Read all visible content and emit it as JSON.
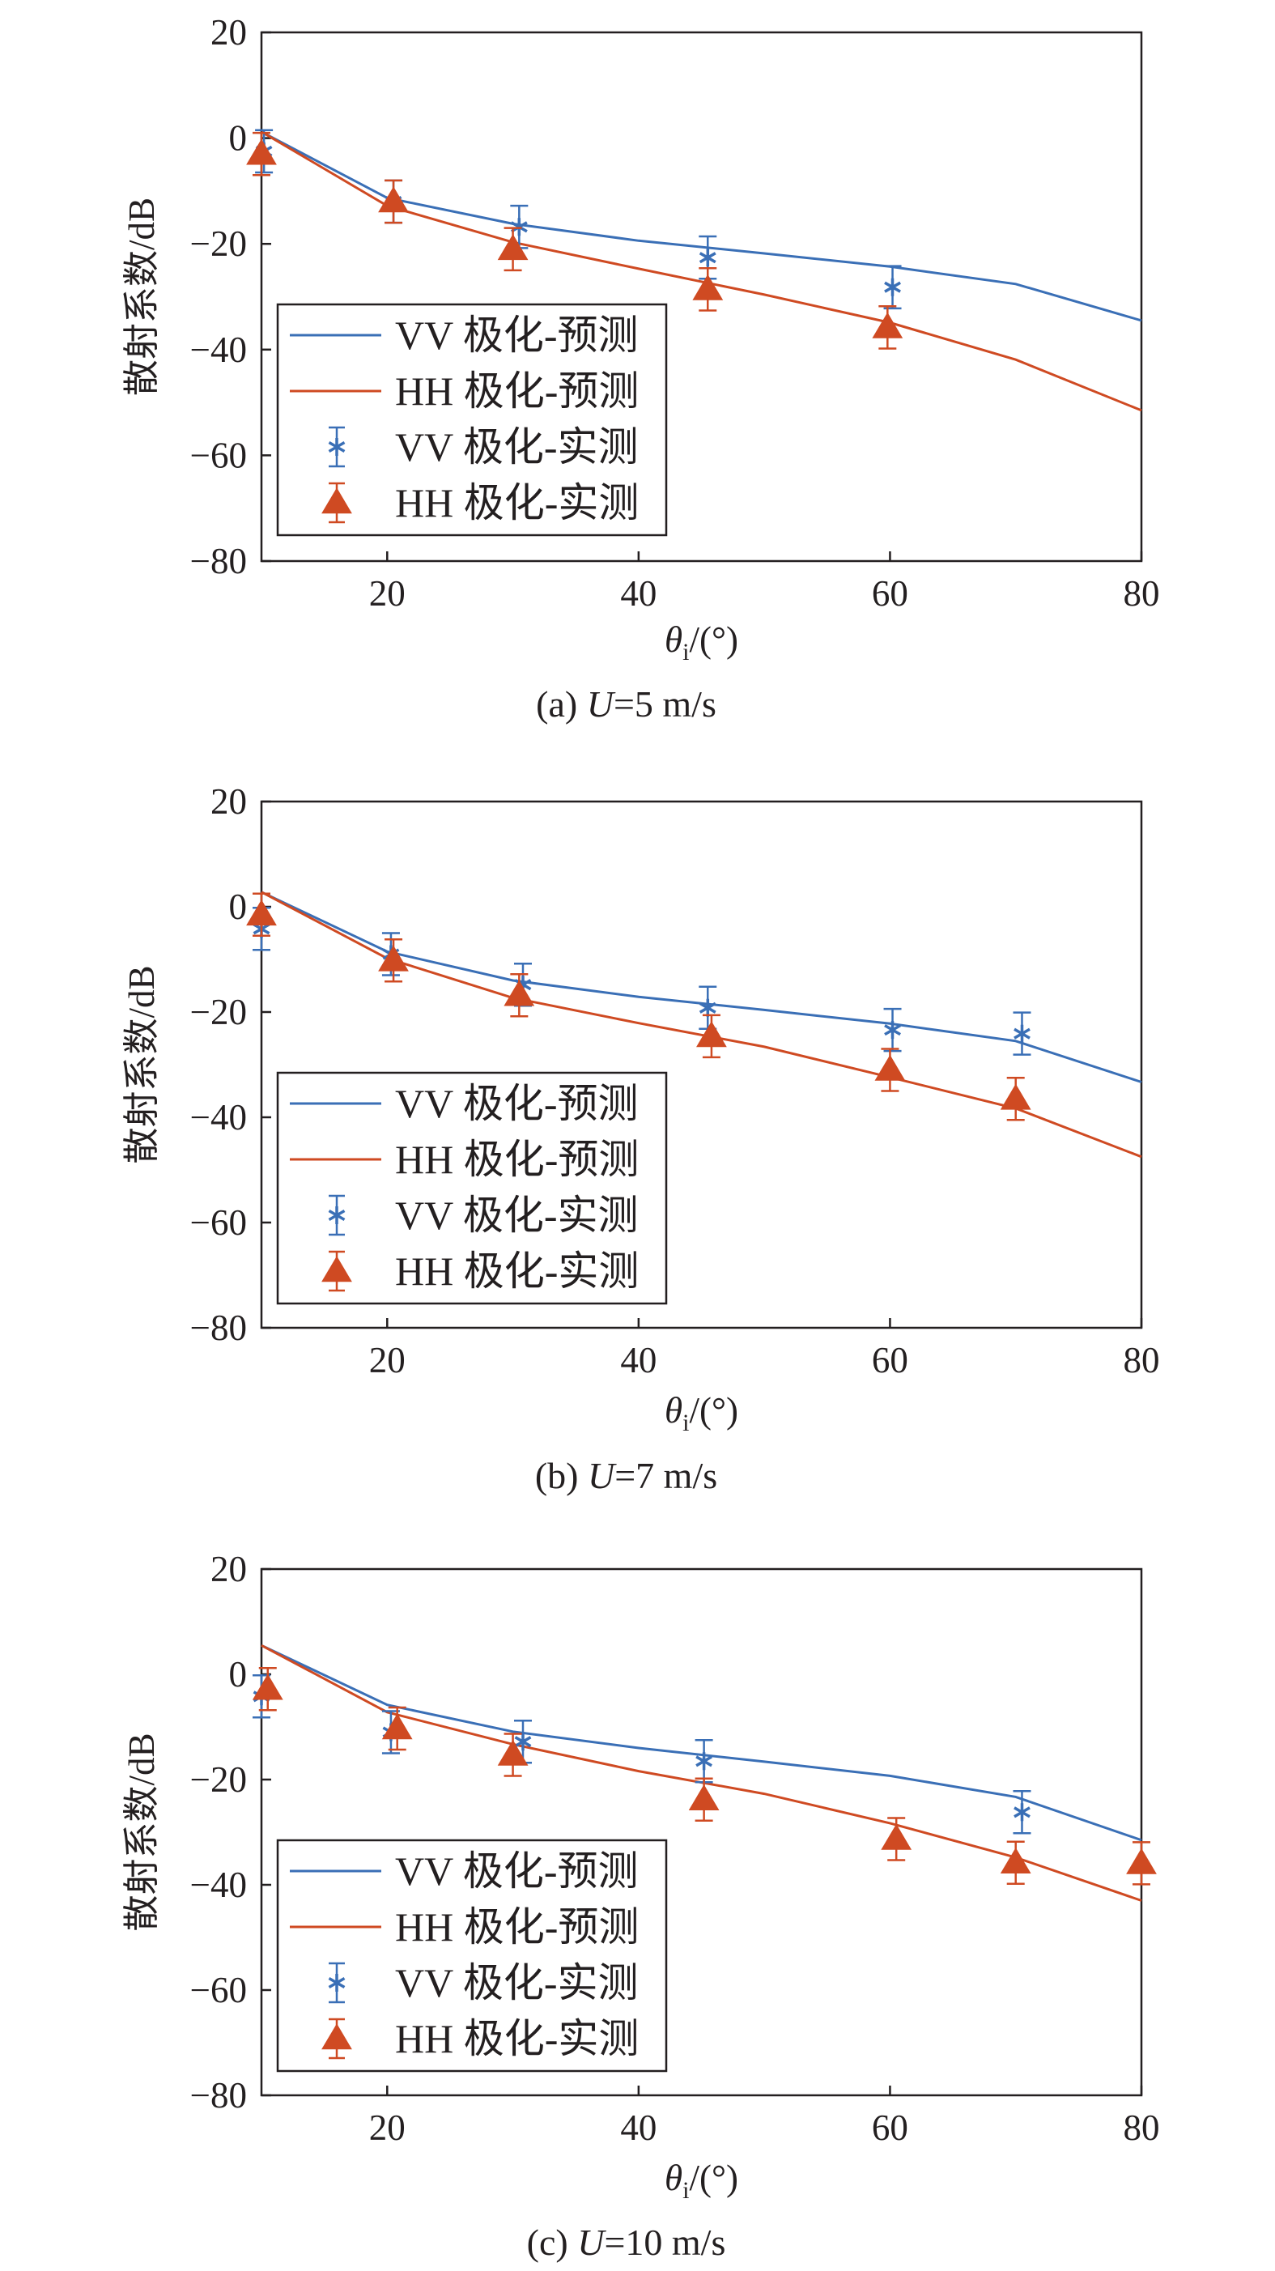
{
  "colors": {
    "vv": "#3a6fb6",
    "hh": "#cf4a22",
    "axis": "#231f20"
  },
  "chart_data": [
    {
      "type": "line",
      "caption": {
        "prefix": "(a) ",
        "var": "U",
        "suffix": "=5 m/s"
      },
      "xlabel": {
        "symbol": "θ",
        "sub": "i",
        "unit": "/(°)"
      },
      "ylabel": "散射系数/dB",
      "xlim": [
        10,
        80
      ],
      "ylim": [
        -80,
        20
      ],
      "xticks": [
        20,
        40,
        60,
        80
      ],
      "yticks": [
        20,
        0,
        -20,
        -40,
        -60,
        -80
      ],
      "ytick_labels": [
        "20",
        "0",
        "−20",
        "−40",
        "−60",
        "−80"
      ],
      "legend_position": "bottom-left",
      "series": [
        {
          "name": "VV 极化-预测",
          "kind": "line",
          "color_key": "vv",
          "x": [
            10,
            20,
            30,
            40,
            50,
            60,
            70,
            80
          ],
          "y": [
            1.2,
            -11.3,
            -16.2,
            -19.4,
            -21.8,
            -24.3,
            -27.6,
            -34.5
          ]
        },
        {
          "name": "HH 极化-预测",
          "kind": "line",
          "color_key": "hh",
          "x": [
            10,
            20,
            30,
            40,
            50,
            60,
            70,
            80
          ],
          "y": [
            1.2,
            -12.8,
            -19.7,
            -24.7,
            -29.6,
            -34.9,
            -41.9,
            -51.5
          ]
        },
        {
          "name": "VV 极化-实测",
          "kind": "star",
          "color_key": "vv",
          "x": [
            10.2,
            20.5,
            30.5,
            45.5,
            60.2
          ],
          "y": [
            -2.5,
            -12,
            -16.8,
            -22.6,
            -28.2
          ],
          "err": [
            4,
            4,
            4,
            4,
            4
          ]
        },
        {
          "name": "HH 极化-实测",
          "kind": "triangle",
          "color_key": "hh",
          "x": [
            10.0,
            20.5,
            30.0,
            45.5,
            59.8
          ],
          "y": [
            -3.0,
            -12.0,
            -21.0,
            -28.6,
            -35.8
          ],
          "err": [
            4,
            4,
            4,
            4,
            4
          ]
        }
      ]
    },
    {
      "type": "line",
      "caption": {
        "prefix": "(b) ",
        "var": "U",
        "suffix": "=7 m/s"
      },
      "xlabel": {
        "symbol": "θ",
        "sub": "i",
        "unit": "/(°)"
      },
      "ylabel": "散射系数/dB",
      "xlim": [
        10,
        80
      ],
      "ylim": [
        -80,
        20
      ],
      "xticks": [
        20,
        40,
        60,
        80
      ],
      "yticks": [
        20,
        0,
        -20,
        -40,
        -60,
        -80
      ],
      "ytick_labels": [
        "20",
        "0",
        "−20",
        "−40",
        "−60",
        "−80"
      ],
      "legend_position": "bottom-left",
      "series": [
        {
          "name": "VV 极化-预测",
          "kind": "line",
          "color_key": "vv",
          "x": [
            10,
            20,
            30,
            40,
            50,
            60,
            70,
            80
          ],
          "y": [
            2.8,
            -8.5,
            -14.0,
            -17.1,
            -19.6,
            -22.2,
            -25.5,
            -33.3
          ]
        },
        {
          "name": "HH 极化-预测",
          "kind": "line",
          "color_key": "hh",
          "x": [
            10,
            20,
            30,
            40,
            50,
            60,
            70,
            80
          ],
          "y": [
            2.8,
            -9.8,
            -17.3,
            -22.1,
            -26.6,
            -32.4,
            -38.3,
            -47.5
          ]
        },
        {
          "name": "VV 极化-实测",
          "kind": "star",
          "color_key": "vv",
          "x": [
            10.0,
            20.3,
            30.8,
            45.5,
            60.2,
            70.5
          ],
          "y": [
            -4.2,
            -9.0,
            -14.8,
            -19.2,
            -23.4,
            -24.1
          ],
          "err": [
            4,
            4,
            4,
            4,
            4,
            4
          ]
        },
        {
          "name": "HH 极化-实测",
          "kind": "triangle",
          "color_key": "hh",
          "x": [
            10.0,
            20.5,
            30.5,
            45.8,
            60.0,
            70.0
          ],
          "y": [
            -1.5,
            -10.2,
            -16.8,
            -24.6,
            -31.0,
            -36.5
          ],
          "err": [
            4,
            4,
            4,
            4,
            4,
            4
          ]
        }
      ]
    },
    {
      "type": "line",
      "caption": {
        "prefix": "(c) ",
        "var": "U",
        "suffix": "=10 m/s"
      },
      "xlabel": {
        "symbol": "θ",
        "sub": "i",
        "unit": "/(°)"
      },
      "ylabel": "散射系数/dB",
      "xlim": [
        10,
        80
      ],
      "ylim": [
        -80,
        20
      ],
      "xticks": [
        20,
        40,
        60,
        80
      ],
      "yticks": [
        20,
        0,
        -20,
        -40,
        -60,
        -80
      ],
      "ytick_labels": [
        "20",
        "0",
        "−20",
        "−40",
        "−60",
        "−80"
      ],
      "legend_position": "bottom-left",
      "series": [
        {
          "name": "VV 极化-预测",
          "kind": "line",
          "color_key": "vv",
          "x": [
            10,
            20,
            30,
            40,
            50,
            60,
            70,
            80
          ],
          "y": [
            5.5,
            -5.8,
            -10.9,
            -14.0,
            -16.6,
            -19.3,
            -23.3,
            -31.5
          ]
        },
        {
          "name": "HH 极化-预测",
          "kind": "line",
          "color_key": "hh",
          "x": [
            10,
            20,
            30,
            40,
            50,
            60,
            70,
            80
          ],
          "y": [
            5.5,
            -7.2,
            -13.3,
            -18.4,
            -22.7,
            -28.3,
            -34.8,
            -43.0
          ]
        },
        {
          "name": "VV 极化-实测",
          "kind": "star",
          "color_key": "vv",
          "x": [
            10.0,
            20.3,
            30.8,
            45.2,
            70.5
          ],
          "y": [
            -4.2,
            -11.0,
            -12.8,
            -16.5,
            -26.2
          ],
          "err": [
            4,
            4,
            4,
            4,
            4
          ]
        },
        {
          "name": "HH 极化-实测",
          "kind": "triangle",
          "color_key": "hh",
          "x": [
            10.5,
            20.8,
            30.0,
            45.2,
            60.5,
            70.0,
            80.0
          ],
          "y": [
            -2.8,
            -10.3,
            -15.3,
            -23.8,
            -31.3,
            -35.8,
            -35.9
          ],
          "err": [
            4,
            4,
            4,
            4,
            4,
            4,
            4
          ]
        }
      ]
    }
  ]
}
